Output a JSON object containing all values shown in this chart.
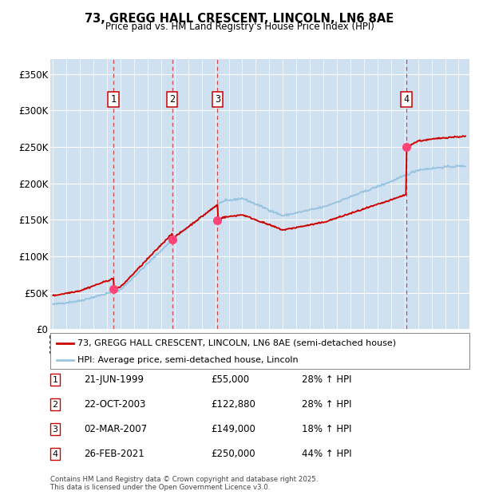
{
  "title": "73, GREGG HALL CRESCENT, LINCOLN, LN6 8AE",
  "subtitle": "Price paid vs. HM Land Registry's House Price Index (HPI)",
  "ylabel_ticks": [
    "£0",
    "£50K",
    "£100K",
    "£150K",
    "£200K",
    "£250K",
    "£300K",
    "£350K"
  ],
  "ytick_vals": [
    0,
    50000,
    100000,
    150000,
    200000,
    250000,
    300000,
    350000
  ],
  "ylim": [
    0,
    370000
  ],
  "xlim_start": 1994.8,
  "xlim_end": 2025.8,
  "background_color": "#cfe0f0",
  "grid_color": "#ffffff",
  "purchases": [
    {
      "num": 1,
      "date_dec": 1999.47,
      "price": 55000,
      "label": "21-JUN-1999",
      "price_str": "£55,000",
      "hpi_str": "28% ↑ HPI"
    },
    {
      "num": 2,
      "date_dec": 2003.81,
      "price": 122880,
      "label": "22-OCT-2003",
      "price_str": "£122,880",
      "hpi_str": "28% ↑ HPI"
    },
    {
      "num": 3,
      "date_dec": 2007.17,
      "price": 149000,
      "label": "02-MAR-2007",
      "price_str": "£149,000",
      "hpi_str": "18% ↑ HPI"
    },
    {
      "num": 4,
      "date_dec": 2021.15,
      "price": 250000,
      "label": "26-FEB-2021",
      "price_str": "£250,000",
      "hpi_str": "44% ↑ HPI"
    }
  ],
  "legend_line1": "73, GREGG HALL CRESCENT, LINCOLN, LN6 8AE (semi-detached house)",
  "legend_line2": "HPI: Average price, semi-detached house, Lincoln",
  "table_rows": [
    {
      "num": "1",
      "date": "21-JUN-1999",
      "price": "£55,000",
      "hpi": "28% ↑ HPI"
    },
    {
      "num": "2",
      "date": "22-OCT-2003",
      "price": "£122,880",
      "hpi": "28% ↑ HPI"
    },
    {
      "num": "3",
      "date": "02-MAR-2007",
      "price": "£149,000",
      "hpi": "18% ↑ HPI"
    },
    {
      "num": "4",
      "date": "26-FEB-2021",
      "price": "£250,000",
      "hpi": "44% ↑ HPI"
    }
  ],
  "footer": "Contains HM Land Registry data © Crown copyright and database right 2025.\nThis data is licensed under the Open Government Licence v3.0.",
  "red_line_color": "#cc0000",
  "blue_line_color": "#99c4e0",
  "marker_fill_color": "#ff4477",
  "dashed_line_color": "#cc3333"
}
